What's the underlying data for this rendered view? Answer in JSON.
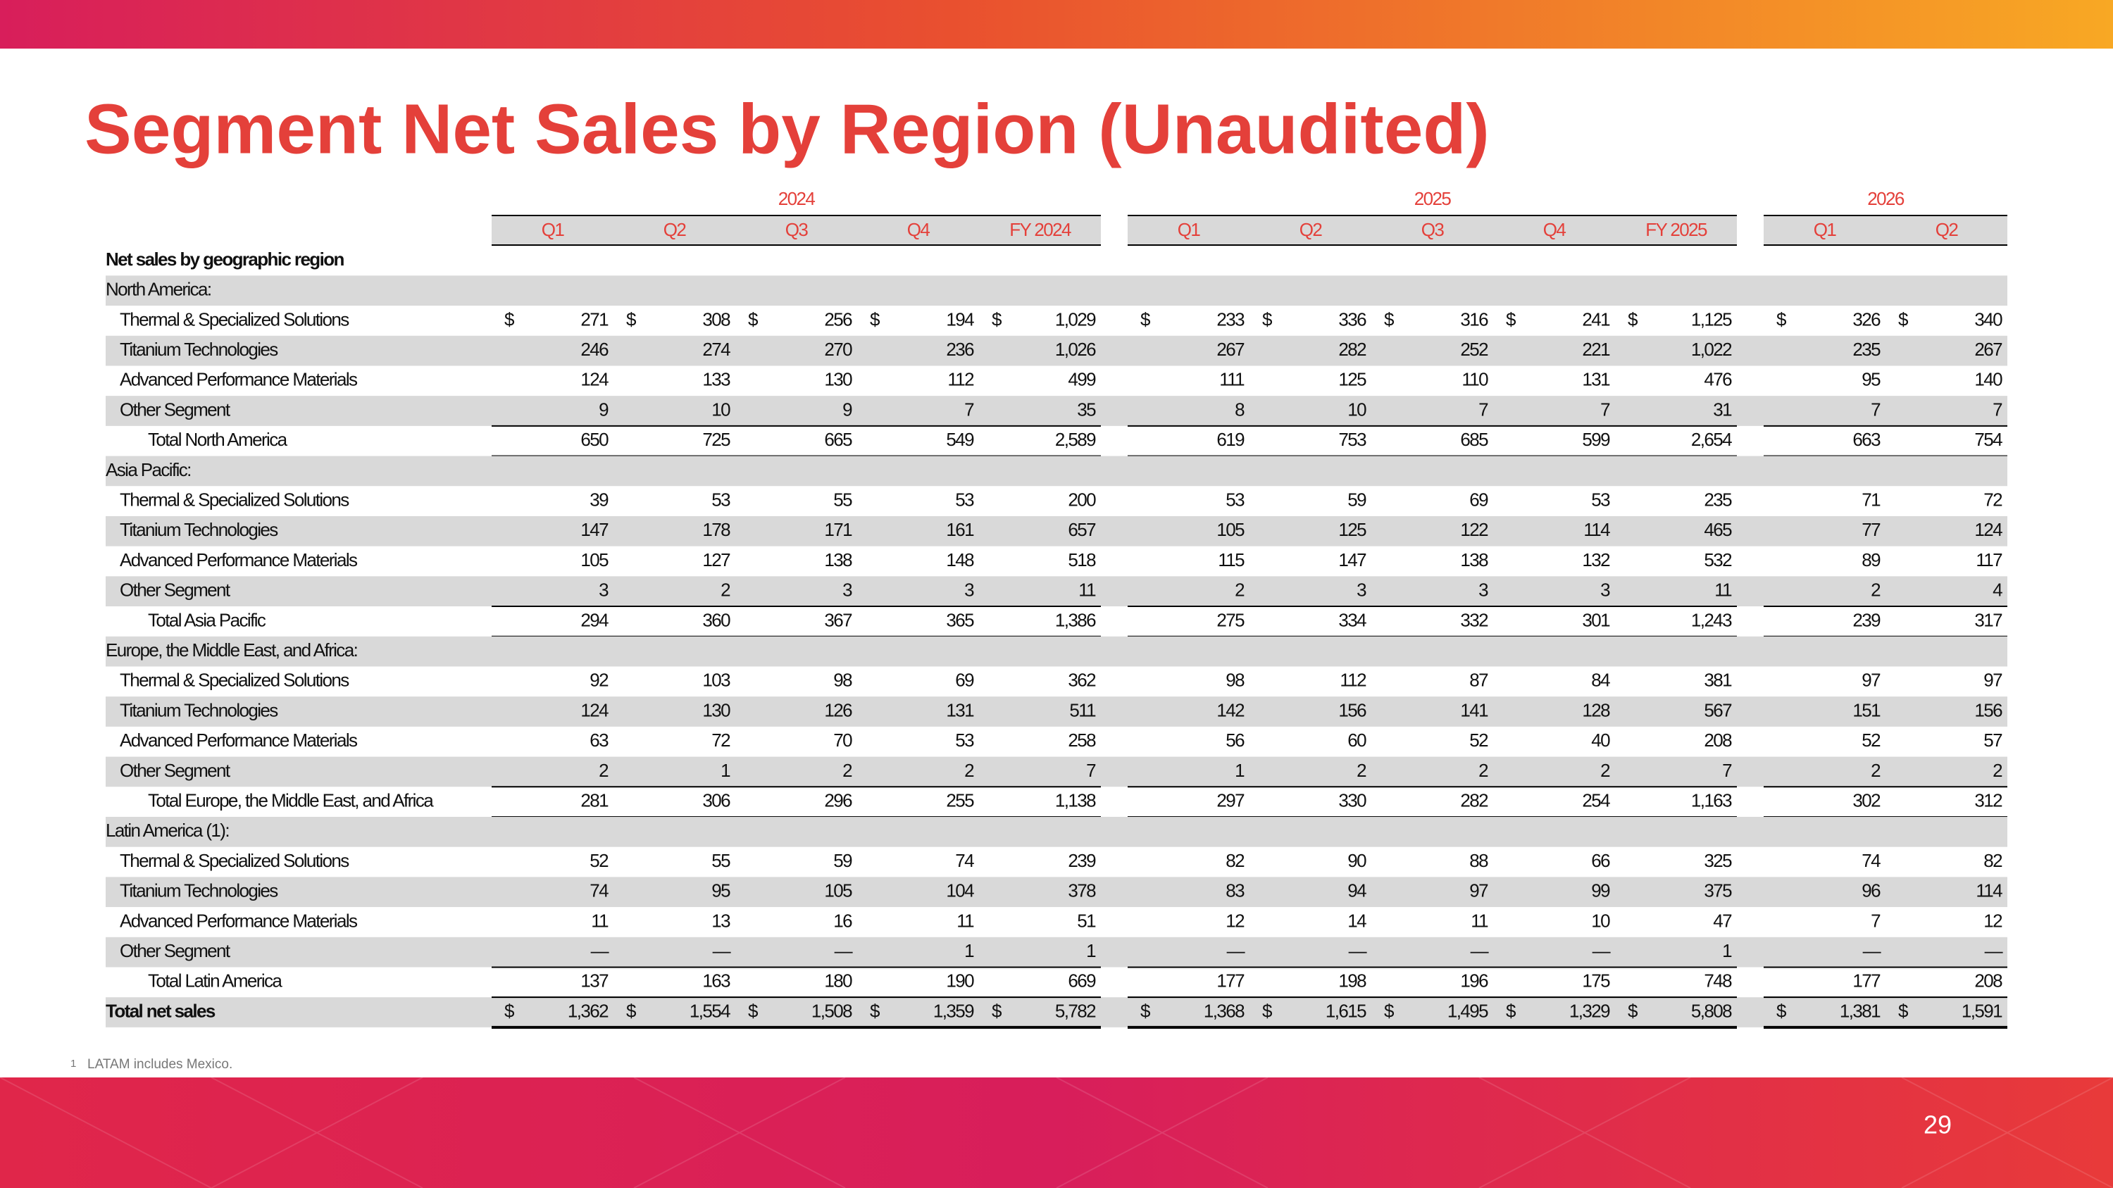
{
  "header": {
    "title": "Segment Net Sales by Region (Unaudited)"
  },
  "table": {
    "column_groups": [
      {
        "year": "2024",
        "columns": [
          "Q1",
          "Q2",
          "Q3",
          "Q4",
          "FY 2024"
        ]
      },
      {
        "year": "2025",
        "columns": [
          "Q1",
          "Q2",
          "Q3",
          "Q4",
          "FY 2025"
        ]
      },
      {
        "year": "2026",
        "columns": [
          "Q1",
          "Q2"
        ]
      }
    ],
    "heading": "Net sales by geographic region",
    "regions": [
      {
        "name": "North America:",
        "rows": [
          {
            "label": "Thermal & Specialized Solutions",
            "currency": "$",
            "values": [
              "271",
              "308",
              "256",
              "194",
              "1,029",
              "233",
              "336",
              "316",
              "241",
              "1,125",
              "326",
              "340"
            ]
          },
          {
            "label": "Titanium Technologies",
            "values": [
              "246",
              "274",
              "270",
              "236",
              "1,026",
              "267",
              "282",
              "252",
              "221",
              "1,022",
              "235",
              "267"
            ]
          },
          {
            "label": "Advanced Performance Materials",
            "values": [
              "124",
              "133",
              "130",
              "112",
              "499",
              "111",
              "125",
              "110",
              "131",
              "476",
              "95",
              "140"
            ]
          },
          {
            "label": "Other Segment",
            "values": [
              "9",
              "10",
              "9",
              "7",
              "35",
              "8",
              "10",
              "7",
              "7",
              "31",
              "7",
              "7"
            ]
          }
        ],
        "total": {
          "label": "Total North America",
          "values": [
            "650",
            "725",
            "665",
            "549",
            "2,589",
            "619",
            "753",
            "685",
            "599",
            "2,654",
            "663",
            "754"
          ]
        }
      },
      {
        "name": "Asia Pacific:",
        "rows": [
          {
            "label": "Thermal & Specialized Solutions",
            "values": [
              "39",
              "53",
              "55",
              "53",
              "200",
              "53",
              "59",
              "69",
              "53",
              "235",
              "71",
              "72"
            ]
          },
          {
            "label": "Titanium Technologies",
            "values": [
              "147",
              "178",
              "171",
              "161",
              "657",
              "105",
              "125",
              "122",
              "114",
              "465",
              "77",
              "124"
            ]
          },
          {
            "label": "Advanced Performance Materials",
            "values": [
              "105",
              "127",
              "138",
              "148",
              "518",
              "115",
              "147",
              "138",
              "132",
              "532",
              "89",
              "117"
            ]
          },
          {
            "label": "Other Segment",
            "values": [
              "3",
              "2",
              "3",
              "3",
              "11",
              "2",
              "3",
              "3",
              "3",
              "11",
              "2",
              "4"
            ]
          }
        ],
        "total": {
          "label": "Total Asia Pacific",
          "values": [
            "294",
            "360",
            "367",
            "365",
            "1,386",
            "275",
            "334",
            "332",
            "301",
            "1,243",
            "239",
            "317"
          ]
        }
      },
      {
        "name": "Europe, the Middle East, and Africa:",
        "rows": [
          {
            "label": "Thermal & Specialized Solutions",
            "values": [
              "92",
              "103",
              "98",
              "69",
              "362",
              "98",
              "112",
              "87",
              "84",
              "381",
              "97",
              "97"
            ]
          },
          {
            "label": "Titanium Technologies",
            "values": [
              "124",
              "130",
              "126",
              "131",
              "511",
              "142",
              "156",
              "141",
              "128",
              "567",
              "151",
              "156"
            ]
          },
          {
            "label": "Advanced Performance Materials",
            "values": [
              "63",
              "72",
              "70",
              "53",
              "258",
              "56",
              "60",
              "52",
              "40",
              "208",
              "52",
              "57"
            ]
          },
          {
            "label": "Other Segment",
            "values": [
              "2",
              "1",
              "2",
              "2",
              "7",
              "1",
              "2",
              "2",
              "2",
              "7",
              "2",
              "2"
            ]
          }
        ],
        "total": {
          "label": "Total Europe, the Middle East, and Africa",
          "values": [
            "281",
            "306",
            "296",
            "255",
            "1,138",
            "297",
            "330",
            "282",
            "254",
            "1,163",
            "302",
            "312"
          ]
        }
      },
      {
        "name": "Latin America (1):",
        "rows": [
          {
            "label": "Thermal & Specialized Solutions",
            "values": [
              "52",
              "55",
              "59",
              "74",
              "239",
              "82",
              "90",
              "88",
              "66",
              "325",
              "74",
              "82"
            ]
          },
          {
            "label": "Titanium Technologies",
            "values": [
              "74",
              "95",
              "105",
              "104",
              "378",
              "83",
              "94",
              "97",
              "99",
              "375",
              "96",
              "114"
            ]
          },
          {
            "label": "Advanced Performance Materials",
            "values": [
              "11",
              "13",
              "16",
              "11",
              "51",
              "12",
              "14",
              "11",
              "10",
              "47",
              "7",
              "12"
            ]
          },
          {
            "label": "Other Segment",
            "values": [
              "—",
              "—",
              "—",
              "1",
              "1",
              "—",
              "—",
              "—",
              "—",
              "1",
              "—",
              "—"
            ]
          }
        ],
        "total": {
          "label": "Total Latin America",
          "values": [
            "137",
            "163",
            "180",
            "190",
            "669",
            "177",
            "198",
            "196",
            "175",
            "748",
            "177",
            "208"
          ]
        }
      }
    ],
    "grand_total": {
      "label": "Total net sales",
      "currency": "$",
      "values": [
        "1,362",
        "1,554",
        "1,508",
        "1,359",
        "5,782",
        "1,368",
        "1,615",
        "1,495",
        "1,329",
        "5,808",
        "1,381",
        "1,591"
      ]
    }
  },
  "footnote": {
    "marker": "1",
    "text": "LATAM includes Mexico."
  },
  "page_number": "29"
}
